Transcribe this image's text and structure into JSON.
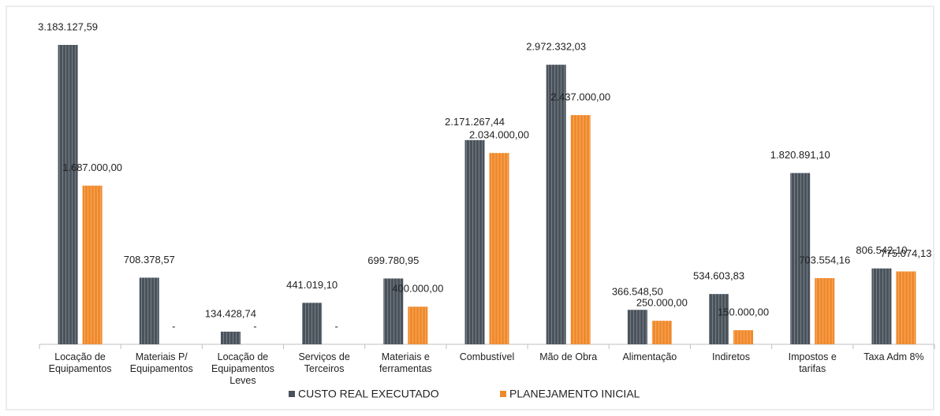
{
  "chart_data": {
    "type": "bar",
    "categories": [
      "Locação de Equipamentos",
      "Materiais P/ Equipamentos",
      "Locação de Equipamentos Leves",
      "Serviços de Terceiros",
      "Materiais e ferramentas",
      "Combustível",
      "Mão de Obra",
      "Alimentação",
      "Indiretos",
      "Impostos e tarifas",
      "Taxa Adm 8%"
    ],
    "series": [
      {
        "name": "CUSTO REAL EXECUTADO",
        "color": "#4a535c",
        "values": [
          3183127.59,
          708378.57,
          134428.74,
          441019.1,
          699780.95,
          2171267.44,
          2972332.03,
          366548.5,
          534603.83,
          1820891.1,
          806542.1
        ],
        "value_labels": [
          "3.183.127,59",
          "708.378,57",
          "134.428,74",
          "441.019,10",
          "699.780,95",
          "2.171.267,44",
          "2.972.332,03",
          "366.548,50",
          "534.603,83",
          "1.820.891,10",
          "806.542,10"
        ]
      },
      {
        "name": "PLANEJAMENTO INICIAL",
        "color": "#f08a2c",
        "values": [
          1687000,
          0,
          0,
          0,
          400000,
          2034000,
          2437000,
          250000,
          150000,
          703554.16,
          775074.13
        ],
        "value_labels": [
          "1.687.000,00",
          "-",
          "-",
          "-",
          "400.000,00",
          "2.034.000,00",
          "2.437.000,00",
          "250.000,00",
          "150.000,00",
          "703.554,16",
          "775.074,13"
        ]
      }
    ],
    "legend": "bottom"
  }
}
